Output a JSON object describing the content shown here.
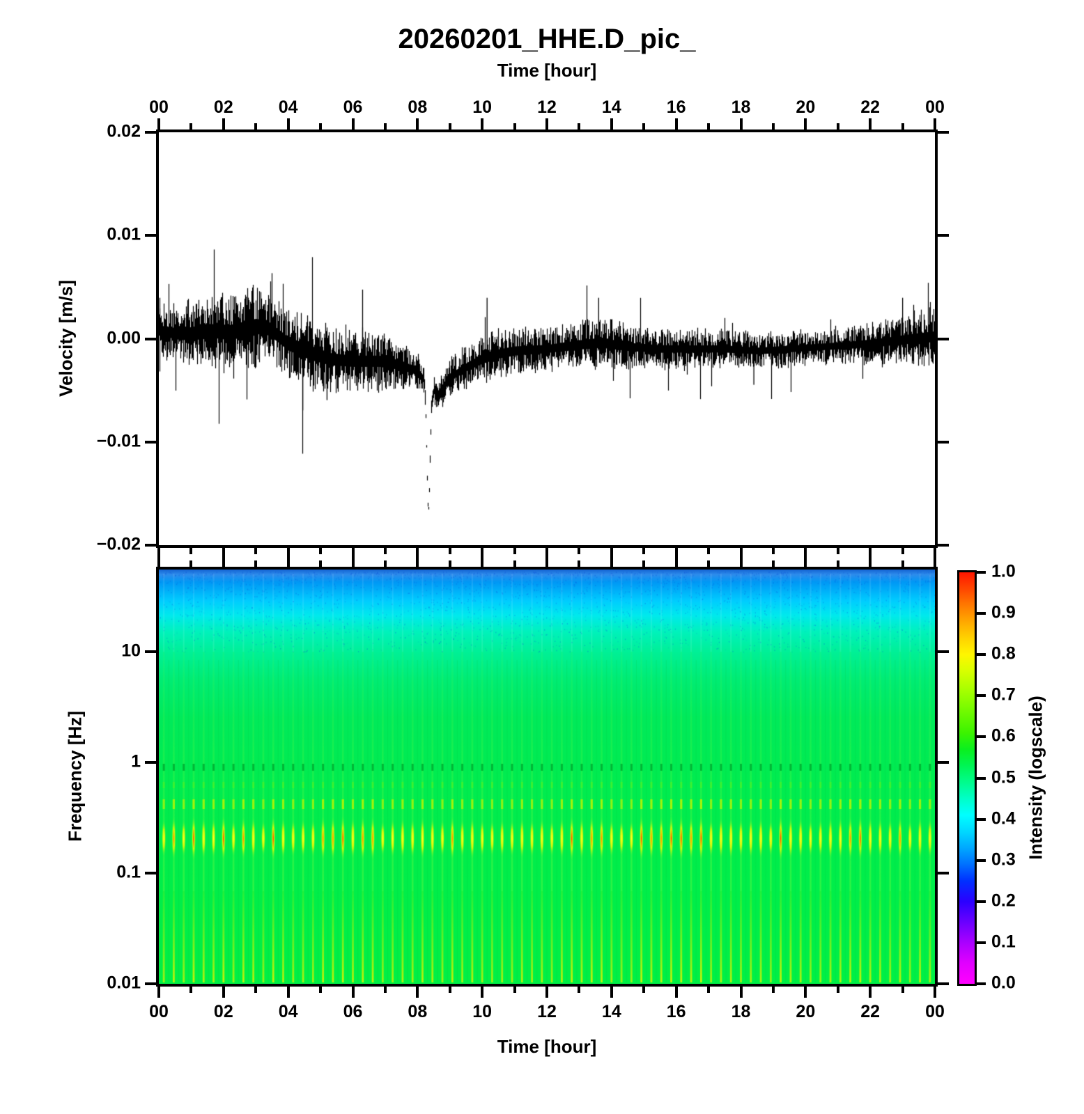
{
  "title": "20260201_HHE.D_pic_",
  "axes": {
    "top": {
      "label": "Time [hour]",
      "tick_labels": [
        "00",
        "02",
        "04",
        "06",
        "08",
        "10",
        "12",
        "14",
        "16",
        "18",
        "20",
        "22",
        "00"
      ]
    },
    "bottom": {
      "label": "Time [hour]",
      "tick_labels": [
        "00",
        "02",
        "04",
        "06",
        "08",
        "10",
        "12",
        "14",
        "16",
        "18",
        "20",
        "22",
        "00"
      ]
    },
    "velocity": {
      "label": "Velocity [m/s]",
      "tick_labels": [
        "0.02",
        "0.01",
        "0.00",
        "−0.01",
        "−0.02"
      ]
    },
    "frequency": {
      "label": "Frequency [Hz]",
      "tick_labels": [
        "10",
        "1",
        "0.1",
        "0.01"
      ]
    },
    "colorbar": {
      "label": "Intensity (logscale)",
      "tick_labels": [
        "1.0",
        "0.9",
        "0.8",
        "0.7",
        "0.6",
        "0.5",
        "0.4",
        "0.3",
        "0.2",
        "0.1",
        "0.0"
      ],
      "gradient_stops": [
        [
          0.0,
          "#FF00FF"
        ],
        [
          0.05,
          "#E100FF"
        ],
        [
          0.1,
          "#AA00FF"
        ],
        [
          0.15,
          "#6A00FF"
        ],
        [
          0.2,
          "#2B00FF"
        ],
        [
          0.25,
          "#0030FF"
        ],
        [
          0.29,
          "#0070FF"
        ],
        [
          0.33,
          "#00A8FF"
        ],
        [
          0.37,
          "#00D8FF"
        ],
        [
          0.41,
          "#00FFFF"
        ],
        [
          0.45,
          "#00FFC8"
        ],
        [
          0.49,
          "#00FC8C"
        ],
        [
          0.53,
          "#00F554"
        ],
        [
          0.57,
          "#0AEF1E"
        ],
        [
          0.61,
          "#3CF300"
        ],
        [
          0.66,
          "#6FFA00"
        ],
        [
          0.71,
          "#A3FF00"
        ],
        [
          0.76,
          "#D8FF00"
        ],
        [
          0.8,
          "#FFF600"
        ],
        [
          0.84,
          "#FFD200"
        ],
        [
          0.88,
          "#FFA800"
        ],
        [
          0.92,
          "#FF7A00"
        ],
        [
          0.96,
          "#FF4600"
        ],
        [
          1.0,
          "#FF1600"
        ]
      ]
    }
  },
  "chart_data": [
    {
      "type": "line",
      "name": "seismogram-trace",
      "xlabel": "Time [hour]",
      "ylabel": "Velocity [m/s]",
      "xlim_hours": [
        0,
        24
      ],
      "ylim": [
        -0.02,
        0.02
      ],
      "line_color": "#000000",
      "envelope_keyframes": [
        {
          "hour": 0.0,
          "mean": 0.0008,
          "amp": 0.002
        },
        {
          "hour": 0.7,
          "mean": 0.0004,
          "amp": 0.0022
        },
        {
          "hour": 1.5,
          "mean": 0.0008,
          "amp": 0.0026
        },
        {
          "hour": 2.2,
          "mean": 0.0006,
          "amp": 0.003
        },
        {
          "hour": 3.0,
          "mean": 0.0012,
          "amp": 0.003
        },
        {
          "hour": 3.4,
          "mean": 0.001,
          "amp": 0.0026
        },
        {
          "hour": 4.0,
          "mean": -0.0005,
          "amp": 0.0026
        },
        {
          "hour": 4.7,
          "mean": -0.0014,
          "amp": 0.0028
        },
        {
          "hour": 5.3,
          "mean": -0.002,
          "amp": 0.0024
        },
        {
          "hour": 6.0,
          "mean": -0.0022,
          "amp": 0.0022
        },
        {
          "hour": 6.8,
          "mean": -0.0022,
          "amp": 0.0022
        },
        {
          "hour": 7.5,
          "mean": -0.0026,
          "amp": 0.0018
        },
        {
          "hour": 8.0,
          "mean": -0.0032,
          "amp": 0.0014
        },
        {
          "hour": 8.6,
          "mean": -0.0055,
          "amp": 0.0012
        },
        {
          "hour": 9.0,
          "mean": -0.0038,
          "amp": 0.0014
        },
        {
          "hour": 9.6,
          "mean": -0.0026,
          "amp": 0.0016
        },
        {
          "hour": 10.3,
          "mean": -0.0016,
          "amp": 0.0018
        },
        {
          "hour": 11.0,
          "mean": -0.0012,
          "amp": 0.0018
        },
        {
          "hour": 12.0,
          "mean": -0.001,
          "amp": 0.0016
        },
        {
          "hour": 13.0,
          "mean": -0.0006,
          "amp": 0.0018
        },
        {
          "hour": 13.7,
          "mean": -0.0004,
          "amp": 0.002
        },
        {
          "hour": 14.5,
          "mean": -0.0008,
          "amp": 0.0016
        },
        {
          "hour": 15.5,
          "mean": -0.001,
          "amp": 0.0015
        },
        {
          "hour": 16.5,
          "mean": -0.001,
          "amp": 0.0014
        },
        {
          "hour": 17.5,
          "mean": -0.001,
          "amp": 0.0014
        },
        {
          "hour": 18.5,
          "mean": -0.0012,
          "amp": 0.0013
        },
        {
          "hour": 19.5,
          "mean": -0.001,
          "amp": 0.0013
        },
        {
          "hour": 20.5,
          "mean": -0.0008,
          "amp": 0.0013
        },
        {
          "hour": 21.5,
          "mean": -0.0006,
          "amp": 0.0014
        },
        {
          "hour": 22.5,
          "mean": -0.0003,
          "amp": 0.0016
        },
        {
          "hour": 23.3,
          "mean": 0.0,
          "amp": 0.0019
        },
        {
          "hour": 24.0,
          "mean": 0.0002,
          "amp": 0.0021
        }
      ],
      "event": {
        "hour": 8.33,
        "min_velocity": -0.0165,
        "core_depth": -0.0122,
        "core_sigma_hours": 0.07
      },
      "spikes": [
        {
          "hour": 0.03,
          "v": 0.004
        },
        {
          "hour": 0.03,
          "v": -0.0032
        },
        {
          "hour": 2.9,
          "v": 0.005
        },
        {
          "hour": 4.45,
          "v": -0.007
        },
        {
          "hour": 5.2,
          "v": -0.006
        },
        {
          "hour": 6.3,
          "v": 0.0048
        },
        {
          "hour": 10.15,
          "v": 0.004
        },
        {
          "hour": 13.6,
          "v": 0.004
        },
        {
          "hour": 18.4,
          "v": -0.0045
        },
        {
          "hour": 23.0,
          "v": 0.004
        }
      ]
    },
    {
      "type": "heatmap",
      "name": "spectrogram",
      "xlabel": "Time [hour]",
      "ylabel": "Frequency [Hz]",
      "xlim_hours": [
        0,
        24
      ],
      "ylim_hz": [
        0.01,
        53
      ],
      "yscale": "log",
      "intensity": {
        "label": "Intensity (logscale)",
        "range": [
          0.0,
          1.0
        ]
      },
      "background_gradient": [
        [
          0.0,
          "#1464D2"
        ],
        [
          0.012,
          "#2E8CEC"
        ],
        [
          0.03,
          "#0098F5"
        ],
        [
          0.075,
          "#00CCFF"
        ],
        [
          0.11,
          "#00E9EE"
        ],
        [
          0.15,
          "#00F2BC"
        ],
        [
          0.2,
          "#00F096"
        ],
        [
          0.27,
          "#00EC72"
        ],
        [
          0.36,
          "#00EA5A"
        ],
        [
          0.5,
          "#00EC50"
        ],
        [
          0.75,
          "#00EE4A"
        ],
        [
          1.0,
          "#00F046"
        ]
      ],
      "stripes": {
        "count": 78,
        "period_minutes": 18.5
      },
      "bands": [
        {
          "freq_hz": 0.9,
          "style": "dark-green-dashes",
          "color": "#00AA32"
        },
        {
          "freq_hz": 0.6,
          "style": "light-green-dashes",
          "color": "#5AF01E"
        },
        {
          "freq_hz": 0.42,
          "style": "yellow-green-dashes",
          "color": "#B9F500"
        },
        {
          "freq_hz": 0.21,
          "style": "yellow-orange-blobs",
          "color": "#F5F500",
          "hot_color": "#FF8C00",
          "hottest_color": "#FF4000"
        },
        {
          "freq_hz_range": [
            0.01,
            0.05
          ],
          "style": "yellow-stripes",
          "color": "#E1F200"
        }
      ]
    }
  ]
}
